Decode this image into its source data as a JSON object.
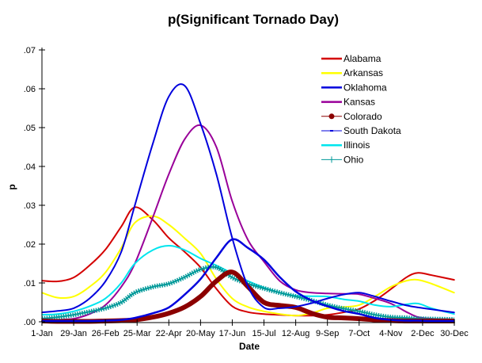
{
  "chart_data": {
    "type": "line",
    "title": "p(Significant Tornado Day)",
    "xlabel": "Date",
    "ylabel": "p",
    "xlim": [
      1,
      365
    ],
    "ylim": [
      0,
      0.07
    ],
    "grid": false,
    "legend_position": "top-right",
    "x_ticks": [
      {
        "value": 1,
        "label": "1-Jan"
      },
      {
        "value": 29,
        "label": "29-Jan"
      },
      {
        "value": 57,
        "label": "26-Feb"
      },
      {
        "value": 85,
        "label": "25-Mar"
      },
      {
        "value": 113,
        "label": "22-Apr"
      },
      {
        "value": 141,
        "label": "20-May"
      },
      {
        "value": 169,
        "label": "17-Jun"
      },
      {
        "value": 197,
        "label": "15-Jul"
      },
      {
        "value": 225,
        "label": "12-Aug"
      },
      {
        "value": 253,
        "label": "9-Sep"
      },
      {
        "value": 281,
        "label": "7-Oct"
      },
      {
        "value": 309,
        "label": "4-Nov"
      },
      {
        "value": 337,
        "label": "2-Dec"
      },
      {
        "value": 365,
        "label": "30-Dec"
      }
    ],
    "y_ticks": [
      {
        "value": 0.0,
        "label": ".00"
      },
      {
        "value": 0.01,
        "label": ".01"
      },
      {
        "value": 0.02,
        "label": ".02"
      },
      {
        "value": 0.03,
        "label": ".03"
      },
      {
        "value": 0.04,
        "label": ".04"
      },
      {
        "value": 0.05,
        "label": ".05"
      },
      {
        "value": 0.06,
        "label": ".06"
      },
      {
        "value": 0.07,
        "label": ".07"
      }
    ],
    "x": [
      1,
      15,
      29,
      43,
      57,
      71,
      83,
      99,
      113,
      127,
      141,
      155,
      169,
      183,
      197,
      211,
      225,
      239,
      253,
      267,
      281,
      295,
      309,
      323,
      333,
      345,
      365
    ],
    "series": [
      {
        "name": "Alabama",
        "color": "#d40000",
        "style": "line",
        "values": [
          0.0106,
          0.0104,
          0.0114,
          0.0145,
          0.0186,
          0.0245,
          0.0295,
          0.0262,
          0.0216,
          0.018,
          0.014,
          0.0085,
          0.004,
          0.0025,
          0.002,
          0.0018,
          0.0016,
          0.0016,
          0.0018,
          0.0024,
          0.0033,
          0.0055,
          0.0084,
          0.0115,
          0.0126,
          0.012,
          0.0108
        ]
      },
      {
        "name": "Arkansas",
        "color": "#ffff00",
        "style": "line",
        "values": [
          0.0075,
          0.0062,
          0.0065,
          0.009,
          0.0127,
          0.019,
          0.0255,
          0.0272,
          0.025,
          0.0215,
          0.0176,
          0.011,
          0.006,
          0.0038,
          0.0027,
          0.002,
          0.0016,
          0.0022,
          0.0035,
          0.0038,
          0.0043,
          0.0065,
          0.009,
          0.0106,
          0.0108,
          0.0098,
          0.0075
        ]
      },
      {
        "name": "Oklahoma",
        "color": "#0000dd",
        "style": "line",
        "values": [
          0.0024,
          0.0028,
          0.0035,
          0.006,
          0.0104,
          0.018,
          0.03,
          0.046,
          0.058,
          0.0608,
          0.051,
          0.038,
          0.0215,
          0.009,
          0.0037,
          0.0035,
          0.0039,
          0.0048,
          0.006,
          0.007,
          0.0075,
          0.0065,
          0.0053,
          0.0042,
          0.0037,
          0.0032,
          0.0024
        ]
      },
      {
        "name": "Kansas",
        "color": "#990099",
        "style": "line",
        "values": [
          0.0003,
          0.0005,
          0.0008,
          0.002,
          0.0043,
          0.009,
          0.015,
          0.027,
          0.038,
          0.047,
          0.0506,
          0.045,
          0.031,
          0.021,
          0.0155,
          0.0105,
          0.0082,
          0.0075,
          0.0073,
          0.0072,
          0.0071,
          0.006,
          0.0047,
          0.0025,
          0.0012,
          0.0008,
          0.0006
        ]
      },
      {
        "name": "Colorado",
        "color": "#8b0000",
        "style": "thick",
        "values": [
          0.0002,
          0.0001,
          0.0001,
          0.0001,
          0.0002,
          0.0003,
          0.0005,
          0.0012,
          0.0022,
          0.0038,
          0.0065,
          0.0105,
          0.0128,
          0.009,
          0.005,
          0.0042,
          0.0037,
          0.0022,
          0.0012,
          0.001,
          0.0008,
          0.0005,
          0.0003,
          0.0002,
          0.0002,
          0.0002,
          0.0002
        ]
      },
      {
        "name": "South Dakota",
        "color": "#0000dd",
        "style": "dash-marker",
        "values": [
          0.0002,
          0.0002,
          0.0002,
          0.0002,
          0.0003,
          0.0005,
          0.001,
          0.0022,
          0.0037,
          0.007,
          0.011,
          0.0165,
          0.0212,
          0.019,
          0.016,
          0.0115,
          0.0078,
          0.0055,
          0.004,
          0.0028,
          0.002,
          0.001,
          0.0005,
          0.0003,
          0.0003,
          0.0002,
          0.0002
        ]
      },
      {
        "name": "Illinois",
        "color": "#00e5ee",
        "style": "line",
        "values": [
          0.0018,
          0.002,
          0.0027,
          0.004,
          0.006,
          0.01,
          0.015,
          0.0185,
          0.0196,
          0.0185,
          0.0163,
          0.0145,
          0.0125,
          0.0105,
          0.0088,
          0.0075,
          0.0067,
          0.0066,
          0.0065,
          0.0058,
          0.0053,
          0.0043,
          0.0039,
          0.0045,
          0.0047,
          0.0035,
          0.002
        ]
      },
      {
        "name": "Ohio",
        "color": "#009999",
        "style": "plus-marker",
        "values": [
          0.0008,
          0.0012,
          0.0018,
          0.0026,
          0.0035,
          0.005,
          0.0075,
          0.009,
          0.0098,
          0.0115,
          0.0135,
          0.014,
          0.0114,
          0.0098,
          0.0086,
          0.0075,
          0.0065,
          0.0055,
          0.0043,
          0.0034,
          0.0027,
          0.0018,
          0.0012,
          0.001,
          0.0008,
          0.0007,
          0.0006
        ]
      }
    ]
  }
}
